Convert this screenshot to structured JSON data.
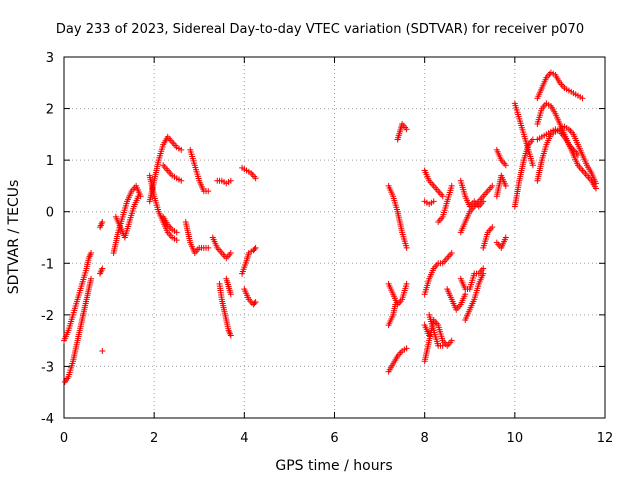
{
  "chart_data": {
    "type": "scatter",
    "title": "Day 233 of 2023, Sidereal Day-to-day VTEC variation (SDTVAR) for receiver p070",
    "xlabel": "GPS time / hours",
    "ylabel": "SDTVAR / TECUs",
    "xlim": [
      0,
      12
    ],
    "ylim": [
      -4,
      3
    ],
    "xticks": [
      "0",
      "2",
      "4",
      "6",
      "8",
      "10",
      "12"
    ],
    "yticks": [
      "-4",
      "-3",
      "-2",
      "-1",
      "0",
      "1",
      "2",
      "3"
    ],
    "grid": true,
    "marker": "+",
    "color": "#ff0000",
    "tracks": [
      [
        [
          0.02,
          -3.3
        ],
        [
          0.1,
          -3.2
        ],
        [
          0.2,
          -2.9
        ],
        [
          0.3,
          -2.5
        ],
        [
          0.4,
          -2.1
        ],
        [
          0.5,
          -1.7
        ],
        [
          0.6,
          -1.3
        ]
      ],
      [
        [
          0.0,
          -2.5
        ],
        [
          0.1,
          -2.3
        ],
        [
          0.2,
          -2.0
        ],
        [
          0.3,
          -1.7
        ],
        [
          0.4,
          -1.4
        ],
        [
          0.5,
          -1.1
        ],
        [
          0.55,
          -0.9
        ],
        [
          0.6,
          -0.8
        ]
      ],
      [
        [
          0.8,
          -0.3
        ],
        [
          0.85,
          -0.2
        ]
      ],
      [
        [
          0.8,
          -1.2
        ],
        [
          0.85,
          -1.1
        ]
      ],
      [
        [
          0.85,
          -2.7
        ]
      ],
      [
        [
          1.1,
          -0.8
        ],
        [
          1.2,
          -0.4
        ],
        [
          1.3,
          -0.1
        ],
        [
          1.4,
          0.2
        ],
        [
          1.5,
          0.4
        ],
        [
          1.6,
          0.5
        ],
        [
          1.7,
          0.3
        ]
      ],
      [
        [
          1.15,
          -0.1
        ],
        [
          1.25,
          -0.3
        ],
        [
          1.35,
          -0.5
        ],
        [
          1.45,
          -0.2
        ],
        [
          1.55,
          0.1
        ],
        [
          1.65,
          0.3
        ]
      ],
      [
        [
          1.9,
          0.2
        ],
        [
          2.0,
          0.6
        ],
        [
          2.1,
          1.0
        ],
        [
          2.2,
          1.3
        ],
        [
          2.3,
          1.45
        ],
        [
          2.4,
          1.35
        ],
        [
          2.5,
          1.25
        ],
        [
          2.6,
          1.2
        ]
      ],
      [
        [
          1.9,
          0.7
        ],
        [
          2.0,
          0.3
        ],
        [
          2.1,
          0.0
        ],
        [
          2.2,
          -0.2
        ],
        [
          2.3,
          -0.4
        ],
        [
          2.4,
          -0.5
        ],
        [
          2.5,
          -0.55
        ]
      ],
      [
        [
          2.2,
          0.9
        ],
        [
          2.3,
          0.8
        ],
        [
          2.4,
          0.7
        ],
        [
          2.5,
          0.65
        ],
        [
          2.6,
          0.6
        ]
      ],
      [
        [
          2.2,
          -0.1
        ],
        [
          2.3,
          -0.25
        ],
        [
          2.4,
          -0.35
        ],
        [
          2.5,
          -0.4
        ]
      ],
      [
        [
          2.8,
          1.2
        ],
        [
          2.9,
          0.9
        ],
        [
          3.0,
          0.6
        ],
        [
          3.1,
          0.4
        ],
        [
          3.2,
          0.4
        ]
      ],
      [
        [
          2.7,
          -0.2
        ],
        [
          2.8,
          -0.6
        ],
        [
          2.9,
          -0.8
        ],
        [
          3.0,
          -0.7
        ],
        [
          3.1,
          -0.7
        ],
        [
          3.2,
          -0.7
        ]
      ],
      [
        [
          3.4,
          0.6
        ],
        [
          3.5,
          0.6
        ],
        [
          3.6,
          0.55
        ],
        [
          3.7,
          0.6
        ]
      ],
      [
        [
          3.3,
          -0.5
        ],
        [
          3.4,
          -0.7
        ],
        [
          3.5,
          -0.8
        ],
        [
          3.6,
          -0.9
        ],
        [
          3.7,
          -0.8
        ]
      ],
      [
        [
          3.45,
          -1.4
        ],
        [
          3.5,
          -1.7
        ],
        [
          3.55,
          -1.9
        ],
        [
          3.6,
          -2.1
        ],
        [
          3.65,
          -2.3
        ],
        [
          3.7,
          -2.4
        ]
      ],
      [
        [
          3.6,
          -1.3
        ],
        [
          3.65,
          -1.45
        ],
        [
          3.7,
          -1.6
        ]
      ],
      [
        [
          3.95,
          0.85
        ],
        [
          4.05,
          0.8
        ],
        [
          4.15,
          0.75
        ],
        [
          4.25,
          0.65
        ]
      ],
      [
        [
          3.95,
          -1.2
        ],
        [
          4.05,
          -0.95
        ],
        [
          4.1,
          -0.8
        ],
        [
          4.2,
          -0.75
        ],
        [
          4.25,
          -0.7
        ]
      ],
      [
        [
          4.0,
          -1.5
        ],
        [
          4.1,
          -1.7
        ],
        [
          4.2,
          -1.8
        ],
        [
          4.25,
          -1.75
        ]
      ],
      [
        [
          7.2,
          0.5
        ],
        [
          7.3,
          0.3
        ],
        [
          7.4,
          0.0
        ],
        [
          7.5,
          -0.4
        ],
        [
          7.6,
          -0.7
        ]
      ],
      [
        [
          7.4,
          1.4
        ],
        [
          7.45,
          1.55
        ],
        [
          7.5,
          1.7
        ],
        [
          7.6,
          1.6
        ]
      ],
      [
        [
          7.2,
          -1.4
        ],
        [
          7.3,
          -1.6
        ],
        [
          7.4,
          -1.8
        ],
        [
          7.5,
          -1.7
        ],
        [
          7.6,
          -1.4
        ]
      ],
      [
        [
          7.2,
          -3.1
        ],
        [
          7.3,
          -2.95
        ],
        [
          7.4,
          -2.8
        ],
        [
          7.5,
          -2.7
        ],
        [
          7.6,
          -2.65
        ]
      ],
      [
        [
          7.2,
          -2.2
        ],
        [
          7.3,
          -2.0
        ],
        [
          7.35,
          -1.8
        ]
      ],
      [
        [
          8.0,
          0.8
        ],
        [
          8.1,
          0.6
        ],
        [
          8.2,
          0.5
        ],
        [
          8.3,
          0.4
        ],
        [
          8.4,
          0.3
        ]
      ],
      [
        [
          8.0,
          0.2
        ],
        [
          8.1,
          0.15
        ],
        [
          8.2,
          0.2
        ]
      ],
      [
        [
          8.3,
          -0.2
        ],
        [
          8.4,
          -0.1
        ],
        [
          8.5,
          0.2
        ],
        [
          8.6,
          0.5
        ]
      ],
      [
        [
          8.0,
          -1.6
        ],
        [
          8.1,
          -1.3
        ],
        [
          8.2,
          -1.1
        ],
        [
          8.3,
          -1.0
        ],
        [
          8.4,
          -1.0
        ],
        [
          8.5,
          -0.9
        ],
        [
          8.6,
          -0.8
        ]
      ],
      [
        [
          8.0,
          -2.9
        ],
        [
          8.1,
          -2.5
        ],
        [
          8.2,
          -2.1
        ],
        [
          8.3,
          -2.2
        ],
        [
          8.4,
          -2.5
        ],
        [
          8.5,
          -2.6
        ],
        [
          8.6,
          -2.5
        ]
      ],
      [
        [
          8.1,
          -2.0
        ],
        [
          8.2,
          -2.3
        ],
        [
          8.3,
          -2.6
        ],
        [
          8.4,
          -2.6
        ]
      ],
      [
        [
          8.0,
          -2.2
        ],
        [
          8.1,
          -2.4
        ]
      ],
      [
        [
          8.5,
          -1.5
        ],
        [
          8.6,
          -1.7
        ],
        [
          8.7,
          -1.9
        ],
        [
          8.8,
          -1.8
        ],
        [
          8.9,
          -1.6
        ]
      ],
      [
        [
          8.8,
          0.6
        ],
        [
          8.9,
          0.3
        ],
        [
          9.0,
          0.1
        ],
        [
          9.1,
          0.2
        ],
        [
          9.2,
          0.1
        ],
        [
          9.3,
          0.2
        ]
      ],
      [
        [
          8.8,
          -0.4
        ],
        [
          8.9,
          -0.2
        ],
        [
          9.0,
          0.0
        ],
        [
          9.1,
          0.1
        ],
        [
          9.2,
          0.2
        ],
        [
          9.3,
          0.3
        ],
        [
          9.4,
          0.4
        ],
        [
          9.5,
          0.5
        ]
      ],
      [
        [
          8.8,
          -1.3
        ],
        [
          8.9,
          -1.5
        ],
        [
          9.0,
          -1.5
        ],
        [
          9.1,
          -1.2
        ],
        [
          9.2,
          -1.2
        ],
        [
          9.3,
          -1.1
        ]
      ],
      [
        [
          8.9,
          -2.1
        ],
        [
          9.0,
          -1.9
        ],
        [
          9.1,
          -1.7
        ],
        [
          9.2,
          -1.4
        ],
        [
          9.3,
          -1.2
        ]
      ],
      [
        [
          9.3,
          -0.7
        ],
        [
          9.4,
          -0.4
        ],
        [
          9.5,
          -0.3
        ]
      ],
      [
        [
          9.6,
          1.2
        ],
        [
          9.7,
          1.0
        ],
        [
          9.8,
          0.9
        ]
      ],
      [
        [
          9.6,
          -0.6
        ],
        [
          9.7,
          -0.7
        ],
        [
          9.8,
          -0.5
        ]
      ],
      [
        [
          9.6,
          0.3
        ],
        [
          9.7,
          0.7
        ],
        [
          9.8,
          0.5
        ]
      ],
      [
        [
          10.0,
          2.1
        ],
        [
          10.1,
          1.8
        ],
        [
          10.2,
          1.5
        ],
        [
          10.3,
          1.2
        ],
        [
          10.4,
          0.9
        ]
      ],
      [
        [
          10.0,
          0.1
        ],
        [
          10.1,
          0.6
        ],
        [
          10.2,
          1.0
        ],
        [
          10.3,
          1.3
        ],
        [
          10.4,
          1.4
        ]
      ],
      [
        [
          10.5,
          2.2
        ],
        [
          10.6,
          2.4
        ],
        [
          10.7,
          2.6
        ],
        [
          10.8,
          2.7
        ],
        [
          10.9,
          2.65
        ],
        [
          11.0,
          2.5
        ],
        [
          11.1,
          2.4
        ],
        [
          11.2,
          2.35
        ],
        [
          11.3,
          2.3
        ],
        [
          11.4,
          2.25
        ],
        [
          11.5,
          2.2
        ]
      ],
      [
        [
          10.5,
          0.6
        ],
        [
          10.6,
          1.0
        ],
        [
          10.7,
          1.3
        ],
        [
          10.8,
          1.5
        ],
        [
          10.9,
          1.55
        ],
        [
          11.0,
          1.6
        ],
        [
          11.1,
          1.65
        ],
        [
          11.2,
          1.6
        ],
        [
          11.3,
          1.5
        ],
        [
          11.4,
          1.3
        ],
        [
          11.5,
          1.1
        ],
        [
          11.6,
          0.9
        ],
        [
          11.7,
          0.75
        ],
        [
          11.8,
          0.55
        ]
      ],
      [
        [
          10.5,
          1.7
        ],
        [
          10.6,
          2.0
        ],
        [
          10.7,
          2.1
        ],
        [
          10.8,
          2.05
        ],
        [
          10.9,
          1.9
        ],
        [
          11.0,
          1.7
        ],
        [
          11.1,
          1.5
        ],
        [
          11.2,
          1.3
        ],
        [
          11.3,
          1.2
        ],
        [
          11.4,
          1.1
        ]
      ],
      [
        [
          10.5,
          1.4
        ],
        [
          10.6,
          1.45
        ],
        [
          10.7,
          1.5
        ],
        [
          10.8,
          1.55
        ],
        [
          10.9,
          1.6
        ],
        [
          11.0,
          1.55
        ],
        [
          11.1,
          1.45
        ],
        [
          11.2,
          1.3
        ],
        [
          11.3,
          1.1
        ],
        [
          11.4,
          0.9
        ],
        [
          11.5,
          0.8
        ],
        [
          11.6,
          0.7
        ],
        [
          11.7,
          0.6
        ],
        [
          11.8,
          0.45
        ]
      ]
    ]
  }
}
